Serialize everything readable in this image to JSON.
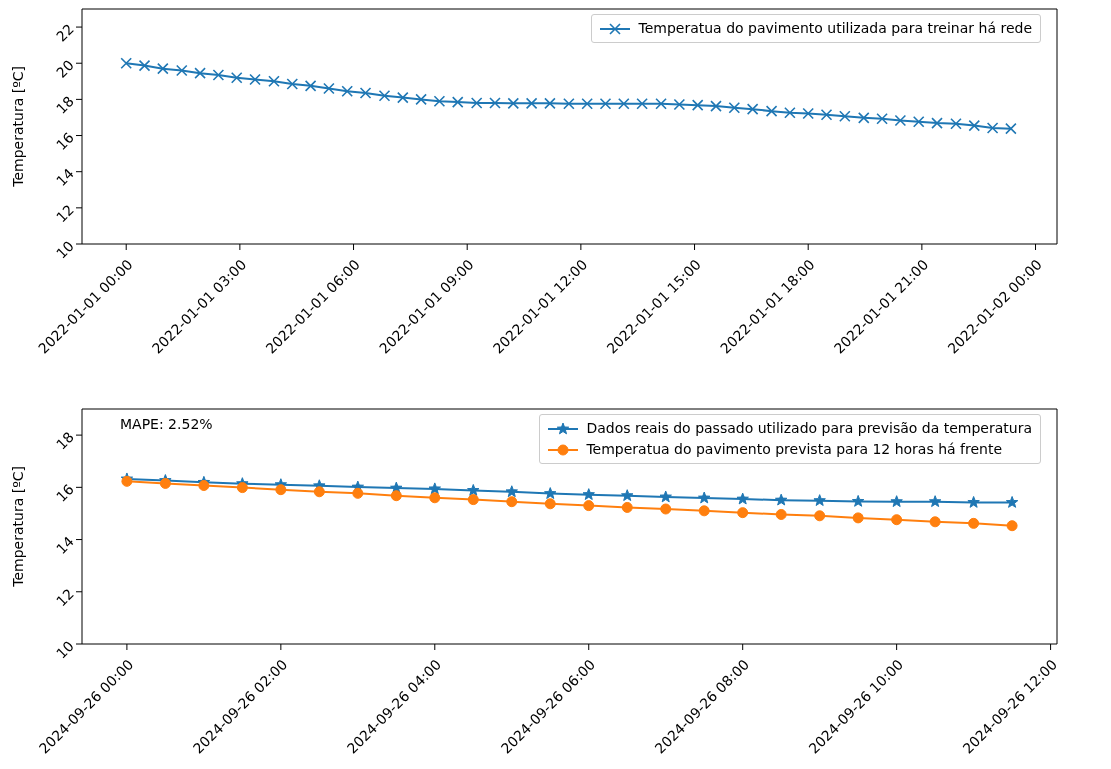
{
  "chart_data": [
    {
      "type": "line",
      "ylabel": "Temperatura [ºC]",
      "legend": "top right",
      "grid": false,
      "line_style": "solid",
      "x": [
        "2022-01-01T00:00",
        "2022-01-01T00:29",
        "2022-01-01T00:58",
        "2022-01-01T01:28",
        "2022-01-01T01:57",
        "2022-01-01T02:26",
        "2022-01-01T02:55",
        "2022-01-01T03:24",
        "2022-01-01T03:54",
        "2022-01-01T04:23",
        "2022-01-01T04:52",
        "2022-01-01T05:21",
        "2022-01-01T05:50",
        "2022-01-01T06:19",
        "2022-01-01T06:49",
        "2022-01-01T07:18",
        "2022-01-01T07:47",
        "2022-01-01T08:16",
        "2022-01-01T08:45",
        "2022-01-01T09:15",
        "2022-01-01T09:44",
        "2022-01-01T10:13",
        "2022-01-01T10:42",
        "2022-01-01T11:11",
        "2022-01-01T11:41",
        "2022-01-01T12:10",
        "2022-01-01T12:39",
        "2022-01-01T13:08",
        "2022-01-01T13:37",
        "2022-01-01T14:07",
        "2022-01-01T14:36",
        "2022-01-01T15:05",
        "2022-01-01T15:34",
        "2022-01-01T16:03",
        "2022-01-01T16:32",
        "2022-01-01T17:02",
        "2022-01-01T17:31",
        "2022-01-01T18:00",
        "2022-01-01T18:29",
        "2022-01-01T18:58",
        "2022-01-01T19:28",
        "2022-01-01T19:57",
        "2022-01-01T20:26",
        "2022-01-01T20:55",
        "2022-01-01T21:24",
        "2022-01-01T21:54",
        "2022-01-01T22:23",
        "2022-01-01T22:52",
        "2022-01-01T23:21"
      ],
      "series": [
        {
          "name": "Temperatua do pavimento utilizada para treinar há rede",
          "color": "#1f77b4",
          "marker": "cross",
          "values": [
            20.0,
            19.87,
            19.7,
            19.6,
            19.45,
            19.35,
            19.2,
            19.1,
            19.0,
            18.85,
            18.75,
            18.6,
            18.45,
            18.35,
            18.2,
            18.1,
            18.0,
            17.9,
            17.85,
            17.8,
            17.8,
            17.78,
            17.78,
            17.78,
            17.76,
            17.76,
            17.76,
            17.76,
            17.76,
            17.76,
            17.72,
            17.68,
            17.63,
            17.54,
            17.46,
            17.35,
            17.26,
            17.22,
            17.15,
            17.07,
            16.98,
            16.93,
            16.83,
            16.76,
            16.69,
            16.65,
            16.55,
            16.42,
            16.38
          ]
        }
      ],
      "xlim": [
        "2021-12-31T22:50",
        "2022-01-02T00:34"
      ],
      "xticks": [
        {
          "value": "2022-01-01T00:00",
          "label": "2022-01-01 00:00"
        },
        {
          "value": "2022-01-01T03:00",
          "label": "2022-01-01 03:00"
        },
        {
          "value": "2022-01-01T06:00",
          "label": "2022-01-01 06:00"
        },
        {
          "value": "2022-01-01T09:00",
          "label": "2022-01-01 09:00"
        },
        {
          "value": "2022-01-01T12:00",
          "label": "2022-01-01 12:00"
        },
        {
          "value": "2022-01-01T15:00",
          "label": "2022-01-01 15:00"
        },
        {
          "value": "2022-01-01T18:00",
          "label": "2022-01-01 18:00"
        },
        {
          "value": "2022-01-01T21:00",
          "label": "2022-01-01 21:00"
        },
        {
          "value": "2022-01-02T00:00",
          "label": "2022-01-02 00:00"
        }
      ],
      "ylim": [
        10,
        23
      ],
      "yticks": [
        10,
        12,
        14,
        16,
        18,
        20,
        22
      ]
    },
    {
      "type": "line",
      "ylabel": "Temperatura [ºC]",
      "legend": "top right",
      "grid": false,
      "line_style": "solid",
      "annotations": [
        "MAPE: 2.52%"
      ],
      "x": [
        "2024-09-26T00:00",
        "2024-09-26T00:30",
        "2024-09-26T01:00",
        "2024-09-26T01:30",
        "2024-09-26T02:00",
        "2024-09-26T02:30",
        "2024-09-26T03:00",
        "2024-09-26T03:30",
        "2024-09-26T04:00",
        "2024-09-26T04:30",
        "2024-09-26T05:00",
        "2024-09-26T05:30",
        "2024-09-26T06:00",
        "2024-09-26T06:30",
        "2024-09-26T07:00",
        "2024-09-26T07:30",
        "2024-09-26T08:00",
        "2024-09-26T08:30",
        "2024-09-26T09:00",
        "2024-09-26T09:30",
        "2024-09-26T10:00",
        "2024-09-26T10:30",
        "2024-09-26T11:00",
        "2024-09-26T11:30"
      ],
      "series": [
        {
          "name": "Dados reais do passado utilizado para previsão da temperatura",
          "color": "#1f77b4",
          "marker": "star",
          "values": [
            16.32,
            16.26,
            16.19,
            16.14,
            16.1,
            16.06,
            16.01,
            15.97,
            15.94,
            15.88,
            15.83,
            15.76,
            15.72,
            15.68,
            15.63,
            15.59,
            15.55,
            15.51,
            15.49,
            15.46,
            15.45,
            15.45,
            15.42,
            15.42
          ]
        },
        {
          "name": "Temperatua do pavimento prevista para 12 horas há frente",
          "color": "#ff7f0e",
          "marker": "circle",
          "values": [
            16.23,
            16.15,
            16.07,
            15.99,
            15.91,
            15.83,
            15.77,
            15.68,
            15.6,
            15.53,
            15.45,
            15.37,
            15.3,
            15.23,
            15.17,
            15.1,
            15.03,
            14.96,
            14.91,
            14.83,
            14.76,
            14.68,
            14.62,
            14.53
          ]
        }
      ],
      "xlim": [
        "2024-09-25T23:25",
        "2024-09-26T12:05"
      ],
      "xticks": [
        {
          "value": "2024-09-26T00:00",
          "label": "2024-09-26 00:00"
        },
        {
          "value": "2024-09-26T02:00",
          "label": "2024-09-26 02:00"
        },
        {
          "value": "2024-09-26T04:00",
          "label": "2024-09-26 04:00"
        },
        {
          "value": "2024-09-26T06:00",
          "label": "2024-09-26 06:00"
        },
        {
          "value": "2024-09-26T08:00",
          "label": "2024-09-26 08:00"
        },
        {
          "value": "2024-09-26T10:00",
          "label": "2024-09-26 10:00"
        },
        {
          "value": "2024-09-26T12:00",
          "label": "2024-09-26 12:00"
        }
      ],
      "ylim": [
        10,
        19
      ],
      "yticks": [
        10,
        12,
        14,
        16,
        18
      ]
    }
  ]
}
